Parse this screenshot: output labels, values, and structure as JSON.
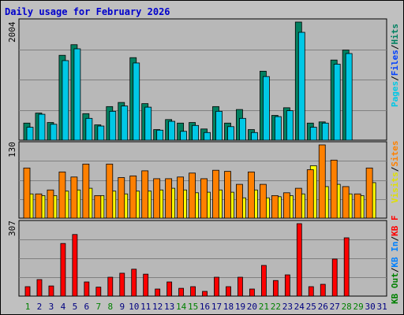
{
  "title": "Daily usage for February 2026",
  "colors": {
    "background": "#c0c0c0",
    "panel": "#b8b8b8",
    "grid": "#808080",
    "title": "#0000cc",
    "pages": "#00c8e6",
    "hits": "#008060",
    "files": "#0040ff",
    "visits": "#ffff00",
    "sites": "#ff8000",
    "kbout": "#008000",
    "kbin": "#0080ff",
    "kbf": "#ff0000",
    "weekday_label": "#000080",
    "weekend_label": "#008000"
  },
  "panels": {
    "top": {
      "ymax_label": "2004",
      "legend": [
        {
          "text": "Pages",
          "color": "#00c8e6"
        },
        {
          "text": "/",
          "color": "#000000"
        },
        {
          "text": "Files",
          "color": "#0040ff"
        },
        {
          "text": "/",
          "color": "#000000"
        },
        {
          "text": "Hits",
          "color": "#008060"
        }
      ]
    },
    "middle": {
      "ymax_label": "130",
      "legend": [
        {
          "text": "Visits",
          "color": "#e0e000"
        },
        {
          "text": "/",
          "color": "#000000"
        },
        {
          "text": "Sites",
          "color": "#ff8000"
        }
      ]
    },
    "bottom": {
      "ymax_label": "307",
      "legend": [
        {
          "text": "KB Out",
          "color": "#008000"
        },
        {
          "text": "/",
          "color": "#000000"
        },
        {
          "text": "KB In",
          "color": "#0080ff"
        },
        {
          "text": "/",
          "color": "#000000"
        },
        {
          "text": "KB F",
          "color": "#ff0000"
        }
      ]
    }
  },
  "chart_data": {
    "type": "bar",
    "title": "Daily usage for February 2026",
    "x": [
      "1",
      "2",
      "3",
      "4",
      "5",
      "6",
      "7",
      "8",
      "9",
      "10",
      "11",
      "12",
      "13",
      "14",
      "15",
      "16",
      "17",
      "18",
      "19",
      "20",
      "21",
      "22",
      "23",
      "24",
      "25",
      "26",
      "27",
      "28",
      "29",
      "30",
      "31"
    ],
    "weekend_days": [
      "1",
      "7",
      "8",
      "14",
      "15",
      "21",
      "22",
      "28",
      "29"
    ],
    "panels": [
      {
        "name": "top",
        "ymax": 2004,
        "series": [
          {
            "name": "Hits",
            "color": "#008060",
            "values": [
              290,
              460,
              300,
              1440,
              1620,
              450,
              260,
              570,
              640,
              1400,
              620,
              180,
              350,
              290,
              300,
              190,
              570,
              290,
              520,
              180,
              1170,
              420,
              550,
              2004,
              290,
              310,
              1360,
              1530,
              0,
              0,
              0
            ]
          },
          {
            "name": "Files",
            "color": "#0040ff",
            "values": [
              220,
              440,
              270,
              1350,
              1550,
              370,
              240,
              490,
              580,
              1310,
              560,
              170,
              320,
              150,
              250,
              130,
              490,
              230,
              370,
              130,
              1080,
              400,
              500,
              1830,
              220,
              290,
              1290,
              1470,
              0,
              0,
              0
            ]
          },
          {
            "name": "Pages",
            "color": "#00c8e6",
            "values": [
              220,
              440,
              270,
              1350,
              1550,
              370,
              240,
              490,
              580,
              1310,
              560,
              170,
              320,
              150,
              250,
              130,
              490,
              230,
              370,
              130,
              1080,
              400,
              500,
              1830,
              220,
              290,
              1290,
              1470,
              0,
              0,
              0
            ]
          }
        ]
      },
      {
        "name": "middle",
        "ymax": 130,
        "series": [
          {
            "name": "Sites",
            "color": "#ff8000",
            "values": [
              89,
              43,
              50,
              82,
              73,
              96,
              40,
              96,
              72,
              75,
              84,
              70,
              70,
              73,
              80,
              70,
              85,
              83,
              60,
              82,
              60,
              40,
              45,
              53,
              86,
              130,
              103,
              56,
              43,
              89,
              0
            ]
          },
          {
            "name": "Visits",
            "color": "#ffff00",
            "values": [
              43,
              40,
              40,
              48,
              50,
              53,
              40,
              48,
              43,
              48,
              48,
              50,
              53,
              50,
              45,
              46,
              50,
              46,
              36,
              50,
              36,
              38,
              40,
              43,
              93,
              56,
              60,
              43,
              40,
              63,
              0
            ]
          }
        ]
      },
      {
        "name": "bottom",
        "ymax": 307,
        "series": [
          {
            "name": "KB F",
            "color": "#ff0000",
            "values": [
              40,
              70,
              43,
              223,
              261,
              60,
              38,
              80,
              97,
              114,
              93,
              30,
              60,
              33,
              40,
              20,
              80,
              40,
              80,
              30,
              130,
              66,
              90,
              307,
              40,
              50,
              157,
              247,
              0,
              0,
              0
            ]
          }
        ]
      }
    ]
  }
}
